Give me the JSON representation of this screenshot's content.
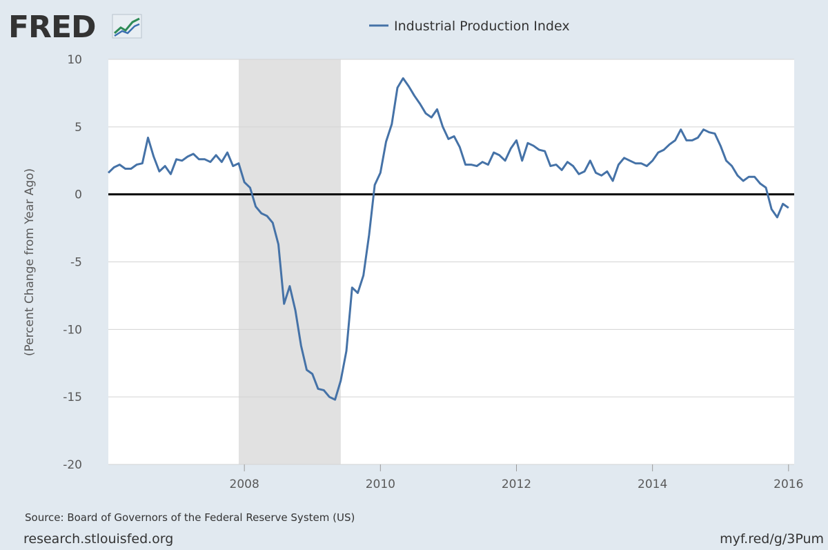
{
  "brand": {
    "name": "FRED"
  },
  "chart_data": {
    "type": "line",
    "title": "",
    "xlabel": "",
    "ylabel": "(Percent Change from Year Ago)",
    "ylim": [
      -20,
      10
    ],
    "yticks": [
      10,
      5,
      0,
      -5,
      -10,
      -15,
      -20
    ],
    "xlim": [
      2006.0,
      2016.083
    ],
    "xticks": [
      2008,
      2010,
      2012,
      2014,
      2016
    ],
    "grid": true,
    "recession": {
      "start": 2007.917,
      "end": 2009.417
    },
    "zero_line": true,
    "legend_position": "top-center",
    "series": [
      {
        "name": "Industrial Production Index",
        "color": "#4572a7",
        "x_start": 2006.0,
        "x_step_months": 1,
        "values": [
          1.6,
          2.0,
          2.2,
          1.9,
          1.9,
          2.2,
          2.3,
          4.2,
          2.8,
          1.7,
          2.1,
          1.5,
          2.6,
          2.5,
          2.8,
          3.0,
          2.6,
          2.6,
          2.4,
          2.9,
          2.4,
          3.1,
          2.1,
          2.3,
          0.9,
          0.5,
          -0.9,
          -1.4,
          -1.6,
          -2.1,
          -3.7,
          -8.1,
          -6.8,
          -8.6,
          -11.2,
          -13.0,
          -13.3,
          -14.4,
          -14.5,
          -15.0,
          -15.2,
          -13.8,
          -11.6,
          -6.9,
          -7.3,
          -6.0,
          -3.0,
          0.7,
          1.6,
          3.9,
          5.2,
          7.9,
          8.6,
          8.0,
          7.3,
          6.7,
          6.0,
          5.7,
          6.3,
          5.0,
          4.1,
          4.3,
          3.5,
          2.2,
          2.2,
          2.1,
          2.4,
          2.2,
          3.1,
          2.9,
          2.5,
          3.4,
          4.0,
          2.5,
          3.8,
          3.6,
          3.3,
          3.2,
          2.1,
          2.2,
          1.8,
          2.4,
          2.1,
          1.5,
          1.7,
          2.5,
          1.6,
          1.4,
          1.7,
          1.0,
          2.2,
          2.7,
          2.5,
          2.3,
          2.3,
          2.1,
          2.5,
          3.1,
          3.3,
          3.7,
          4.0,
          4.8,
          4.0,
          4.0,
          4.2,
          4.8,
          4.6,
          4.5,
          3.6,
          2.5,
          2.1,
          1.4,
          1.0,
          1.3,
          1.3,
          0.8,
          0.5,
          -1.1,
          -1.7,
          -0.7,
          -1.0
        ]
      }
    ]
  },
  "source_text": "Source: Board of Governors of the Federal Reserve System (US)",
  "footer_left": "research.stlouisfed.org",
  "footer_right": "myf.red/g/3Pum"
}
